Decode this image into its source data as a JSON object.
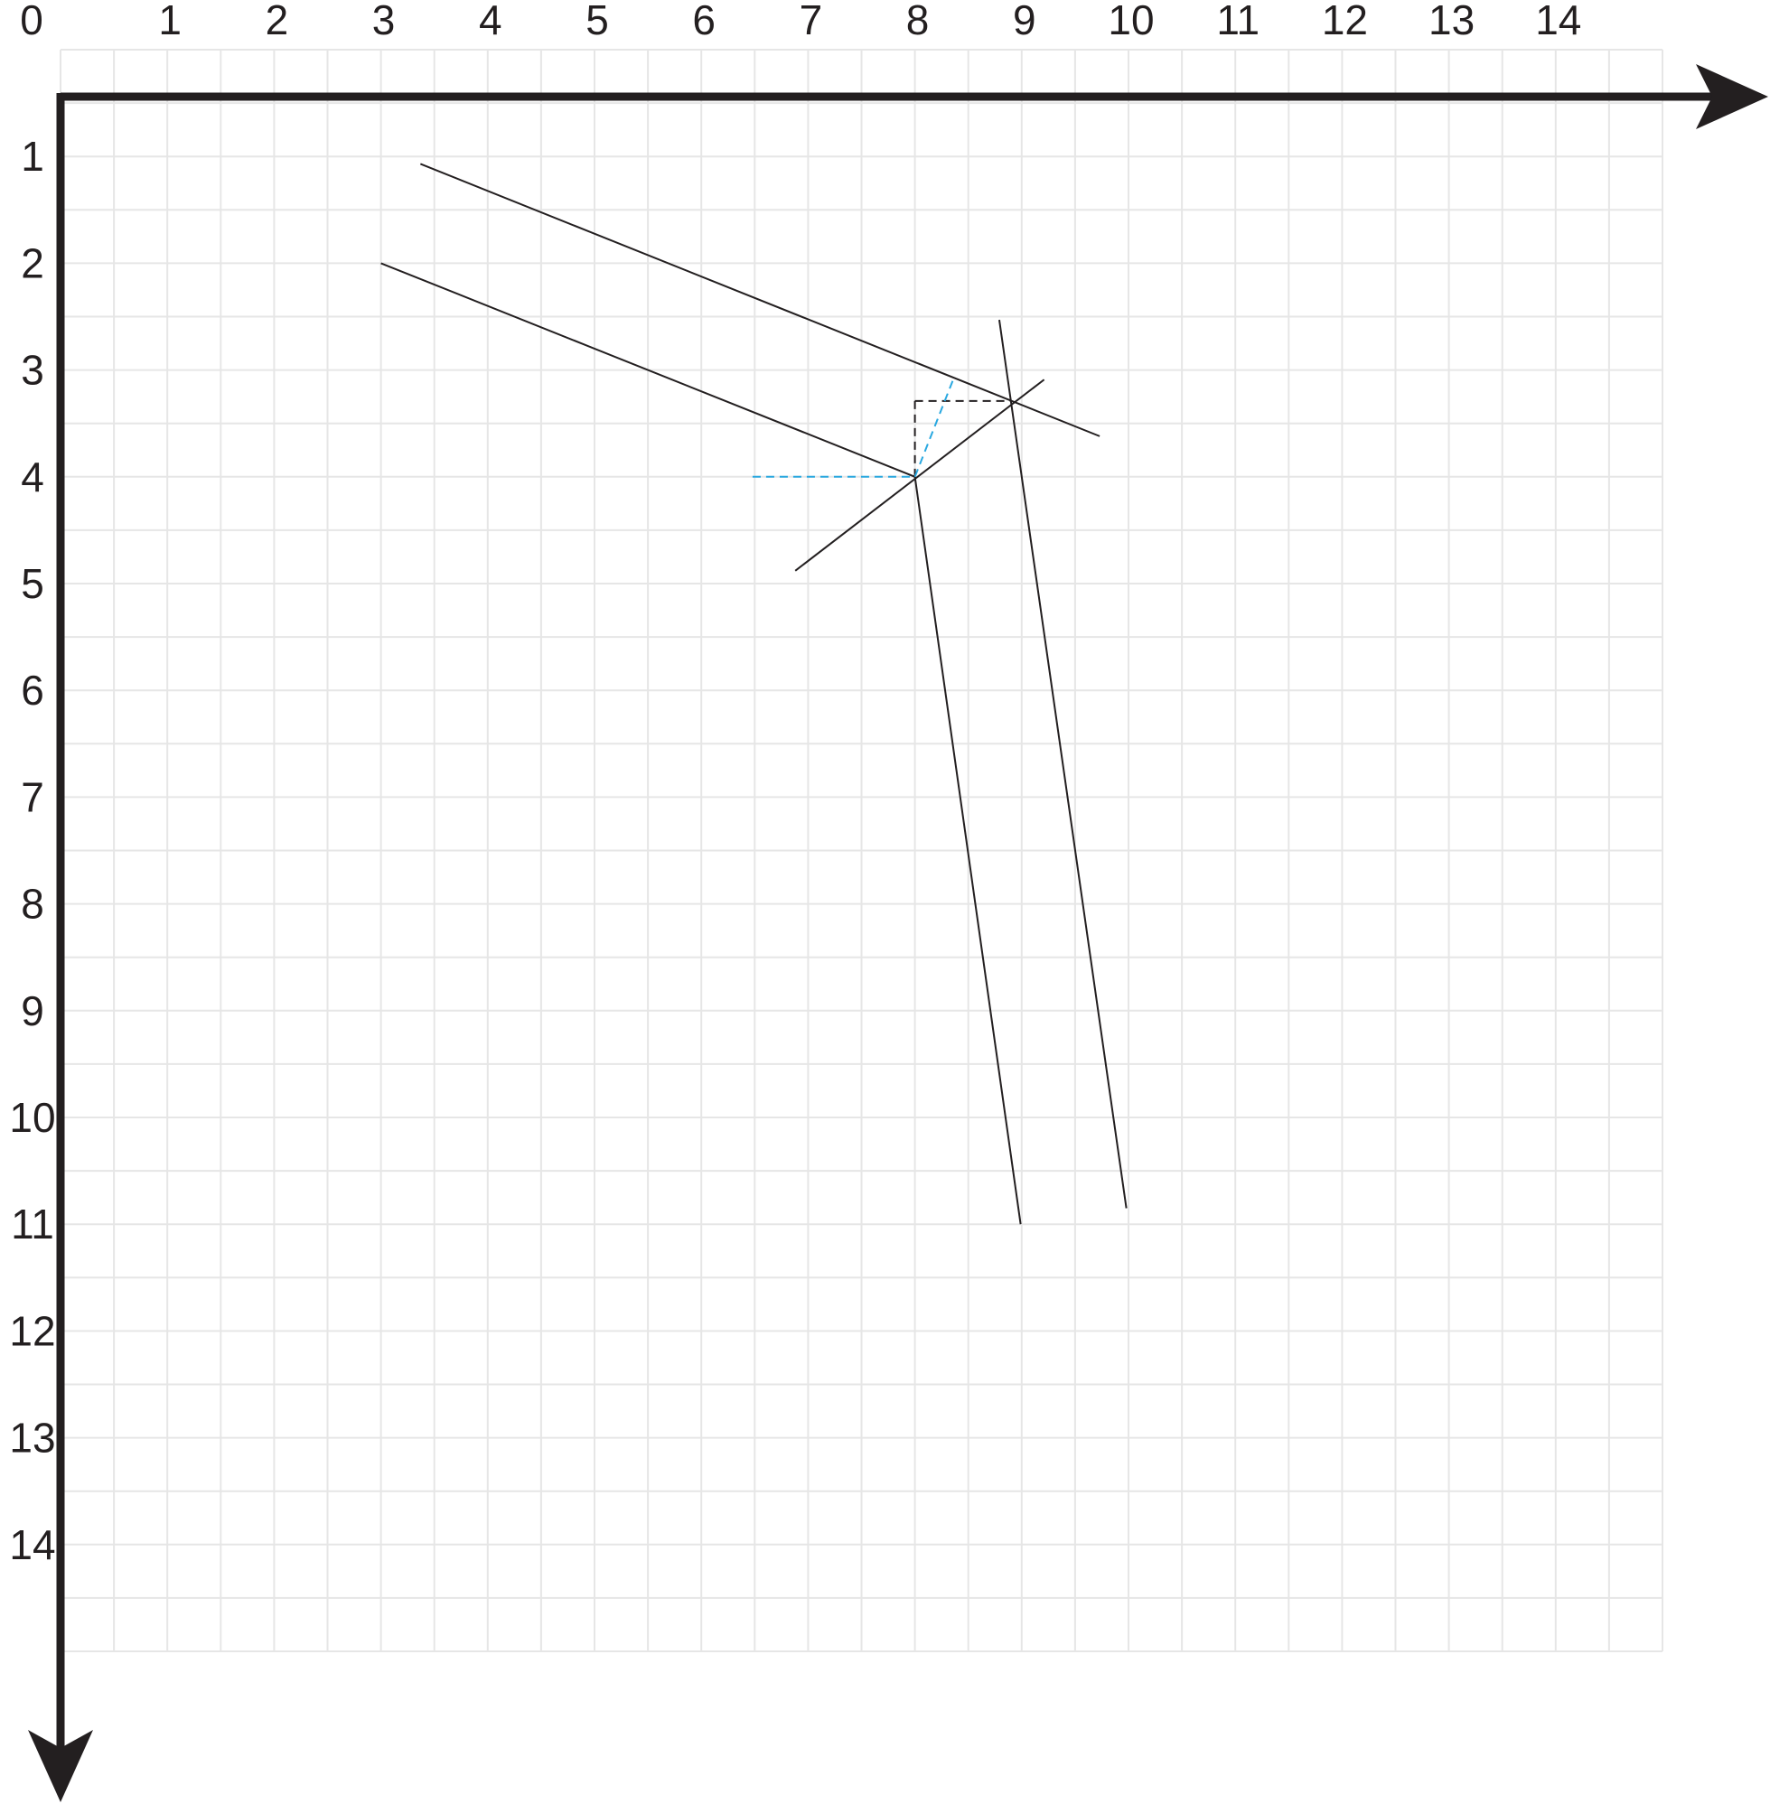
{
  "grid": {
    "x_min": 0,
    "x_max": 15,
    "y_min": 0,
    "y_max": 15,
    "minor_step": 0.5,
    "grid_color": "#e6e6e6",
    "axis_color": "#231f20"
  },
  "x_ticks": [
    {
      "value": 0,
      "label": "0"
    },
    {
      "value": 1,
      "label": "1"
    },
    {
      "value": 2,
      "label": "2"
    },
    {
      "value": 3,
      "label": "3"
    },
    {
      "value": 4,
      "label": "4"
    },
    {
      "value": 5,
      "label": "5"
    },
    {
      "value": 6,
      "label": "6"
    },
    {
      "value": 7,
      "label": "7"
    },
    {
      "value": 8,
      "label": "8"
    },
    {
      "value": 9,
      "label": "9"
    },
    {
      "value": 10,
      "label": "10"
    },
    {
      "value": 11,
      "label": "11"
    },
    {
      "value": 12,
      "label": "12"
    },
    {
      "value": 13,
      "label": "13"
    },
    {
      "value": 14,
      "label": "14"
    }
  ],
  "y_ticks": [
    {
      "value": 1,
      "label": "1"
    },
    {
      "value": 2,
      "label": "2"
    },
    {
      "value": 3,
      "label": "3"
    },
    {
      "value": 4,
      "label": "4"
    },
    {
      "value": 5,
      "label": "5"
    },
    {
      "value": 6,
      "label": "6"
    },
    {
      "value": 7,
      "label": "7"
    },
    {
      "value": 8,
      "label": "8"
    },
    {
      "value": 9,
      "label": "9"
    },
    {
      "value": 10,
      "label": "10"
    },
    {
      "value": 11,
      "label": "11"
    },
    {
      "value": 12,
      "label": "12"
    },
    {
      "value": 13,
      "label": "13"
    },
    {
      "value": 14,
      "label": "14"
    }
  ],
  "lines": [
    {
      "name": "upper-slanted-line",
      "from": [
        3.37,
        1.07
      ],
      "to": [
        9.73,
        3.62
      ],
      "style": "solid",
      "color": "#231f20"
    },
    {
      "name": "lower-slanted-line",
      "from": [
        3.0,
        2.0
      ],
      "to": [
        8.0,
        4.0
      ],
      "style": "solid",
      "color": "#231f20"
    },
    {
      "name": "left-steep-line",
      "from": [
        8.0,
        4.0
      ],
      "to": [
        8.99,
        11.0
      ],
      "style": "solid",
      "color": "#231f20"
    },
    {
      "name": "right-steep-line",
      "from": [
        8.79,
        2.53
      ],
      "to": [
        9.98,
        10.85
      ],
      "style": "solid",
      "color": "#231f20"
    },
    {
      "name": "diagonal-connector-line",
      "from": [
        6.88,
        4.88
      ],
      "to": [
        9.21,
        3.09
      ],
      "style": "solid",
      "color": "#231f20"
    },
    {
      "name": "black-dash-horizontal",
      "from": [
        8.0,
        3.29
      ],
      "to": [
        8.9,
        3.29
      ],
      "style": "dashed",
      "color": "#231f20"
    },
    {
      "name": "black-dash-vertical",
      "from": [
        8.0,
        3.29
      ],
      "to": [
        8.0,
        4.0
      ],
      "style": "dashed",
      "color": "#231f20"
    },
    {
      "name": "blue-dash-horizontal",
      "from": [
        6.48,
        4.0
      ],
      "to": [
        8.0,
        4.0
      ],
      "style": "dashed",
      "color": "#29a8e0"
    },
    {
      "name": "blue-dash-slanted",
      "from": [
        8.0,
        4.0
      ],
      "to": [
        8.37,
        3.06
      ],
      "style": "dashed",
      "color": "#29a8e0"
    }
  ]
}
